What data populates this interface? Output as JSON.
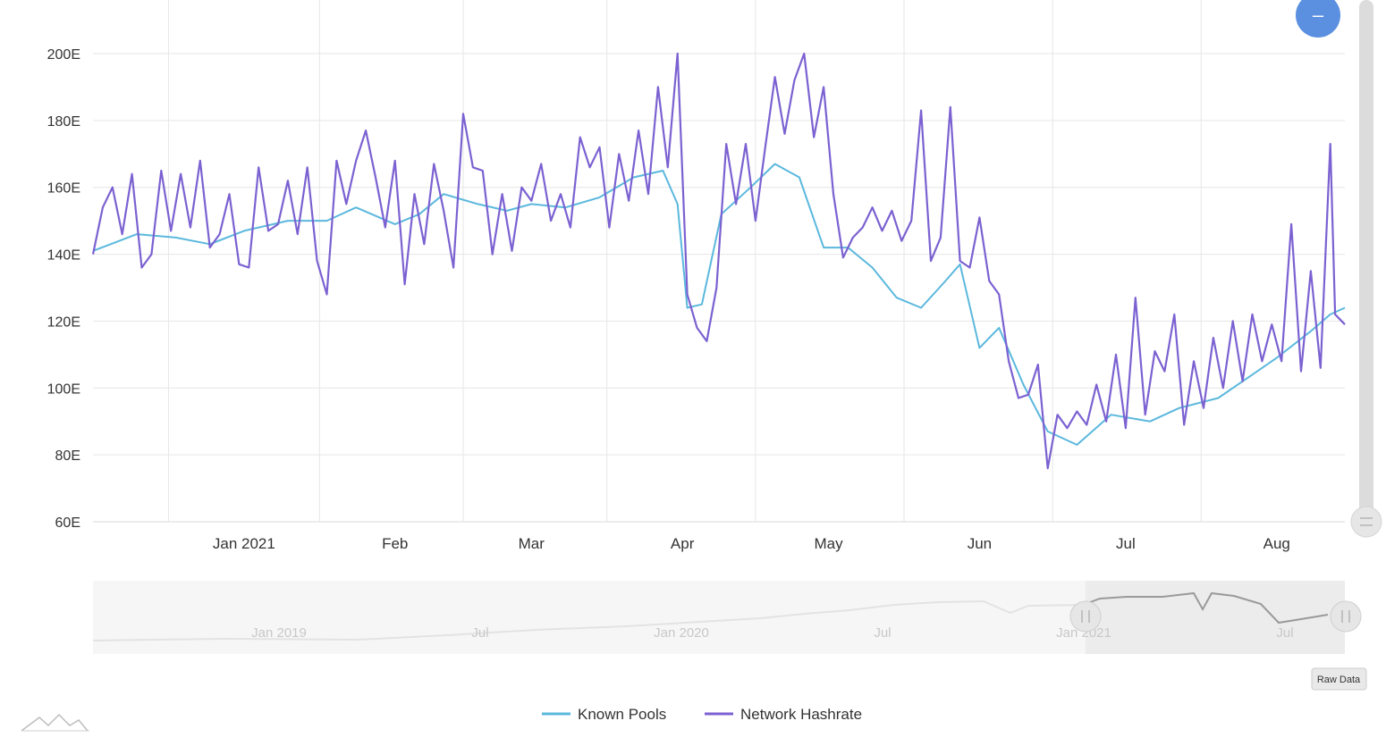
{
  "chart_data": {
    "type": "line",
    "x_start": "2020-12-01",
    "x_end": "2021-08-15",
    "ylim": [
      60,
      200
    ],
    "y_ticks": [
      60,
      80,
      100,
      120,
      140,
      160,
      180,
      200
    ],
    "y_tick_labels": [
      "60E",
      "80E",
      "100E",
      "120E",
      "140E",
      "160E",
      "180E",
      "200E"
    ],
    "x_ticks": [
      {
        "label": "Jan 2021",
        "date": "2021-01-01"
      },
      {
        "label": "Feb",
        "date": "2021-02-01"
      },
      {
        "label": "Mar",
        "date": "2021-03-01"
      },
      {
        "label": "Apr",
        "date": "2021-04-01"
      },
      {
        "label": "May",
        "date": "2021-05-01"
      },
      {
        "label": "Jun",
        "date": "2021-06-01"
      },
      {
        "label": "Jul",
        "date": "2021-07-01"
      },
      {
        "label": "Aug",
        "date": "2021-08-01"
      }
    ],
    "grid": true,
    "legend_position": "bottom-center",
    "series": [
      {
        "name": "Known Pools",
        "color": "#5bb8dd",
        "points": [
          [
            "2020-12-01",
            141
          ],
          [
            "2020-12-10",
            146
          ],
          [
            "2020-12-18",
            145
          ],
          [
            "2020-12-25",
            143
          ],
          [
            "2021-01-01",
            147
          ],
          [
            "2021-01-10",
            150
          ],
          [
            "2021-01-18",
            150
          ],
          [
            "2021-01-24",
            154
          ],
          [
            "2021-02-01",
            149
          ],
          [
            "2021-02-06",
            152
          ],
          [
            "2021-02-11",
            158
          ],
          [
            "2021-02-18",
            155
          ],
          [
            "2021-02-24",
            153
          ],
          [
            "2021-03-01",
            155
          ],
          [
            "2021-03-08",
            154
          ],
          [
            "2021-03-15",
            157
          ],
          [
            "2021-03-22",
            163
          ],
          [
            "2021-03-28",
            165
          ],
          [
            "2021-03-31",
            155
          ],
          [
            "2021-04-02",
            124
          ],
          [
            "2021-04-05",
            125
          ],
          [
            "2021-04-09",
            152
          ],
          [
            "2021-04-15",
            160
          ],
          [
            "2021-04-20",
            167
          ],
          [
            "2021-04-25",
            163
          ],
          [
            "2021-04-30",
            142
          ],
          [
            "2021-05-05",
            142
          ],
          [
            "2021-05-10",
            136
          ],
          [
            "2021-05-15",
            127
          ],
          [
            "2021-05-20",
            124
          ],
          [
            "2021-05-25",
            132
          ],
          [
            "2021-05-28",
            137
          ],
          [
            "2021-06-01",
            112
          ],
          [
            "2021-06-05",
            118
          ],
          [
            "2021-06-10",
            101
          ],
          [
            "2021-06-15",
            87
          ],
          [
            "2021-06-21",
            83
          ],
          [
            "2021-06-28",
            92
          ],
          [
            "2021-07-06",
            90
          ],
          [
            "2021-07-12",
            94
          ],
          [
            "2021-07-20",
            97
          ],
          [
            "2021-07-26",
            103
          ],
          [
            "2021-08-01",
            109
          ],
          [
            "2021-08-08",
            117
          ],
          [
            "2021-08-12",
            122
          ],
          [
            "2021-08-15",
            124
          ]
        ]
      },
      {
        "name": "Network Hashrate",
        "color": "#7b61d1",
        "points": [
          [
            "2020-12-01",
            140
          ],
          [
            "2020-12-03",
            154
          ],
          [
            "2020-12-05",
            160
          ],
          [
            "2020-12-07",
            146
          ],
          [
            "2020-12-09",
            164
          ],
          [
            "2020-12-11",
            136
          ],
          [
            "2020-12-13",
            140
          ],
          [
            "2020-12-15",
            165
          ],
          [
            "2020-12-17",
            147
          ],
          [
            "2020-12-19",
            164
          ],
          [
            "2020-12-21",
            148
          ],
          [
            "2020-12-23",
            168
          ],
          [
            "2020-12-25",
            142
          ],
          [
            "2020-12-27",
            146
          ],
          [
            "2020-12-29",
            158
          ],
          [
            "2020-12-31",
            137
          ],
          [
            "2021-01-02",
            136
          ],
          [
            "2021-01-04",
            166
          ],
          [
            "2021-01-06",
            147
          ],
          [
            "2021-01-08",
            149
          ],
          [
            "2021-01-10",
            162
          ],
          [
            "2021-01-12",
            146
          ],
          [
            "2021-01-14",
            166
          ],
          [
            "2021-01-16",
            138
          ],
          [
            "2021-01-18",
            128
          ],
          [
            "2021-01-20",
            168
          ],
          [
            "2021-01-22",
            155
          ],
          [
            "2021-01-24",
            168
          ],
          [
            "2021-01-26",
            177
          ],
          [
            "2021-01-28",
            163
          ],
          [
            "2021-01-30",
            148
          ],
          [
            "2021-02-01",
            168
          ],
          [
            "2021-02-03",
            131
          ],
          [
            "2021-02-05",
            158
          ],
          [
            "2021-02-07",
            143
          ],
          [
            "2021-02-09",
            167
          ],
          [
            "2021-02-11",
            153
          ],
          [
            "2021-02-13",
            136
          ],
          [
            "2021-02-15",
            182
          ],
          [
            "2021-02-17",
            166
          ],
          [
            "2021-02-19",
            165
          ],
          [
            "2021-02-21",
            140
          ],
          [
            "2021-02-23",
            158
          ],
          [
            "2021-02-25",
            141
          ],
          [
            "2021-02-27",
            160
          ],
          [
            "2021-03-01",
            156
          ],
          [
            "2021-03-03",
            167
          ],
          [
            "2021-03-05",
            150
          ],
          [
            "2021-03-07",
            158
          ],
          [
            "2021-03-09",
            148
          ],
          [
            "2021-03-11",
            175
          ],
          [
            "2021-03-13",
            166
          ],
          [
            "2021-03-15",
            172
          ],
          [
            "2021-03-17",
            148
          ],
          [
            "2021-03-19",
            170
          ],
          [
            "2021-03-21",
            156
          ],
          [
            "2021-03-23",
            177
          ],
          [
            "2021-03-25",
            158
          ],
          [
            "2021-03-27",
            190
          ],
          [
            "2021-03-29",
            166
          ],
          [
            "2021-03-31",
            200
          ],
          [
            "2021-04-02",
            128
          ],
          [
            "2021-04-04",
            118
          ],
          [
            "2021-04-06",
            114
          ],
          [
            "2021-04-08",
            130
          ],
          [
            "2021-04-10",
            173
          ],
          [
            "2021-04-12",
            155
          ],
          [
            "2021-04-14",
            173
          ],
          [
            "2021-04-16",
            150
          ],
          [
            "2021-04-18",
            172
          ],
          [
            "2021-04-20",
            193
          ],
          [
            "2021-04-22",
            176
          ],
          [
            "2021-04-24",
            192
          ],
          [
            "2021-04-26",
            200
          ],
          [
            "2021-04-28",
            175
          ],
          [
            "2021-04-30",
            190
          ],
          [
            "2021-05-02",
            158
          ],
          [
            "2021-05-04",
            139
          ],
          [
            "2021-05-06",
            145
          ],
          [
            "2021-05-08",
            148
          ],
          [
            "2021-05-10",
            154
          ],
          [
            "2021-05-12",
            147
          ],
          [
            "2021-05-14",
            153
          ],
          [
            "2021-05-16",
            144
          ],
          [
            "2021-05-18",
            150
          ],
          [
            "2021-05-20",
            183
          ],
          [
            "2021-05-22",
            138
          ],
          [
            "2021-05-24",
            145
          ],
          [
            "2021-05-26",
            184
          ],
          [
            "2021-05-28",
            138
          ],
          [
            "2021-05-30",
            136
          ],
          [
            "2021-06-01",
            151
          ],
          [
            "2021-06-03",
            132
          ],
          [
            "2021-06-05",
            128
          ],
          [
            "2021-06-07",
            108
          ],
          [
            "2021-06-09",
            97
          ],
          [
            "2021-06-11",
            98
          ],
          [
            "2021-06-13",
            107
          ],
          [
            "2021-06-15",
            76
          ],
          [
            "2021-06-17",
            92
          ],
          [
            "2021-06-19",
            88
          ],
          [
            "2021-06-21",
            93
          ],
          [
            "2021-06-23",
            89
          ],
          [
            "2021-06-25",
            101
          ],
          [
            "2021-06-27",
            90
          ],
          [
            "2021-06-29",
            110
          ],
          [
            "2021-07-01",
            88
          ],
          [
            "2021-07-03",
            127
          ],
          [
            "2021-07-05",
            92
          ],
          [
            "2021-07-07",
            111
          ],
          [
            "2021-07-09",
            105
          ],
          [
            "2021-07-11",
            122
          ],
          [
            "2021-07-13",
            89
          ],
          [
            "2021-07-15",
            108
          ],
          [
            "2021-07-17",
            94
          ],
          [
            "2021-07-19",
            115
          ],
          [
            "2021-07-21",
            100
          ],
          [
            "2021-07-23",
            120
          ],
          [
            "2021-07-25",
            102
          ],
          [
            "2021-07-27",
            122
          ],
          [
            "2021-07-29",
            108
          ],
          [
            "2021-07-31",
            119
          ],
          [
            "2021-08-02",
            108
          ],
          [
            "2021-08-04",
            149
          ],
          [
            "2021-08-06",
            105
          ],
          [
            "2021-08-08",
            135
          ],
          [
            "2021-08-10",
            106
          ],
          [
            "2021-08-12",
            173
          ],
          [
            "2021-08-13",
            122
          ],
          [
            "2021-08-15",
            119
          ]
        ]
      }
    ]
  },
  "navigator": {
    "tick_labels": [
      "Jan 2019",
      "Jul",
      "Jan 2020",
      "Jul",
      "Jan 2021",
      "Jul"
    ]
  },
  "legend": [
    {
      "label": "Known Pools",
      "color": "#5bb8dd"
    },
    {
      "label": "Network Hashrate",
      "color": "#7b61d1"
    }
  ],
  "controls": {
    "raw_data_label": "Raw Data",
    "zoom_out_symbol": "–"
  },
  "colors": {
    "grid": "#e6e6e6",
    "zoom_button": "#5b8fe0"
  }
}
